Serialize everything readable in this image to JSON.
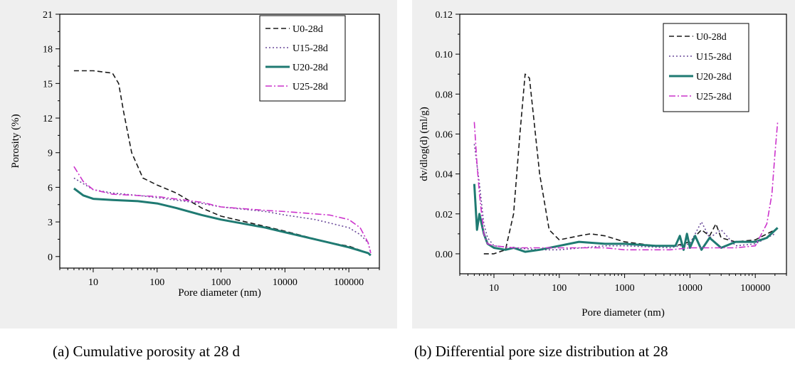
{
  "chart_data": [
    {
      "type": "line",
      "title": "",
      "caption": "(a) Cumulative porosity at 28 d",
      "xlabel": "Pore diameter (nm)",
      "ylabel": "Porosity (%)",
      "xscale": "log",
      "xlim": [
        3,
        300000
      ],
      "ylim": [
        -1,
        21
      ],
      "xticks": [
        10,
        100,
        1000,
        10000,
        100000
      ],
      "xtick_labels": [
        "10",
        "100",
        "1000",
        "10000",
        "100000"
      ],
      "yticks": [
        0,
        3,
        6,
        9,
        12,
        15,
        18,
        21
      ],
      "ytick_labels": [
        "0",
        "3",
        "6",
        "9",
        "12",
        "15",
        "18",
        "21"
      ],
      "grid": false,
      "legend_position": "top-right",
      "series": [
        {
          "name": "U0-28d",
          "color": "#1a1a1a",
          "dash": "7,4",
          "width": 1.6,
          "points": [
            [
              5,
              16.1
            ],
            [
              10,
              16.1
            ],
            [
              20,
              15.9
            ],
            [
              25,
              15
            ],
            [
              30,
              12.5
            ],
            [
              40,
              9
            ],
            [
              60,
              6.8
            ],
            [
              100,
              6.2
            ],
            [
              200,
              5.5
            ],
            [
              500,
              4.2
            ],
            [
              1000,
              3.5
            ],
            [
              5000,
              2.6
            ],
            [
              10000,
              2.2
            ],
            [
              50000,
              1.2
            ],
            [
              100000,
              0.9
            ],
            [
              200000,
              0.3
            ],
            [
              220000,
              0.1
            ]
          ]
        },
        {
          "name": "U15-28d",
          "color": "#6a4a9a",
          "dash": "2,3",
          "width": 1.6,
          "points": [
            [
              5,
              6.8
            ],
            [
              10,
              5.8
            ],
            [
              20,
              5.5
            ],
            [
              50,
              5.3
            ],
            [
              100,
              5.1
            ],
            [
              500,
              4.6
            ],
            [
              1000,
              4.3
            ],
            [
              5000,
              3.9
            ],
            [
              10000,
              3.6
            ],
            [
              30000,
              3.2
            ],
            [
              100000,
              2.5
            ],
            [
              150000,
              1.9
            ],
            [
              200000,
              1.2
            ],
            [
              220000,
              0.3
            ]
          ]
        },
        {
          "name": "U20-28d",
          "color": "#1f7a72",
          "dash": "",
          "width": 3,
          "points": [
            [
              5,
              5.9
            ],
            [
              7,
              5.3
            ],
            [
              10,
              5.0
            ],
            [
              20,
              4.9
            ],
            [
              50,
              4.8
            ],
            [
              100,
              4.6
            ],
            [
              200,
              4.2
            ],
            [
              500,
              3.6
            ],
            [
              1000,
              3.2
            ],
            [
              5000,
              2.5
            ],
            [
              10000,
              2.1
            ],
            [
              50000,
              1.2
            ],
            [
              100000,
              0.8
            ],
            [
              200000,
              0.3
            ],
            [
              220000,
              0.1
            ]
          ]
        },
        {
          "name": "U25-28d",
          "color": "#cc33cc",
          "dash": "9,3,2,3",
          "width": 1.6,
          "points": [
            [
              5,
              7.8
            ],
            [
              7,
              6.5
            ],
            [
              10,
              5.8
            ],
            [
              20,
              5.4
            ],
            [
              100,
              5.2
            ],
            [
              500,
              4.7
            ],
            [
              1000,
              4.3
            ],
            [
              5000,
              4.0
            ],
            [
              10000,
              3.9
            ],
            [
              50000,
              3.6
            ],
            [
              100000,
              3.2
            ],
            [
              150000,
              2.5
            ],
            [
              200000,
              1.2
            ],
            [
              220000,
              0.3
            ]
          ]
        }
      ]
    },
    {
      "type": "line",
      "title": "",
      "caption": "(b) Differential pore size distribution at 28",
      "xlabel": "Pore diameter (nm)",
      "ylabel": "dv/dlog(d) (ml/g)",
      "xscale": "log",
      "xlim": [
        3,
        300000
      ],
      "ylim": [
        -0.01,
        0.12
      ],
      "xticks": [
        10,
        100,
        1000,
        10000,
        100000
      ],
      "xtick_labels": [
        "10",
        "100",
        "1000",
        "10000",
        "100000"
      ],
      "yticks": [
        0,
        0.02,
        0.04,
        0.06,
        0.08,
        0.1,
        0.12
      ],
      "ytick_labels": [
        "0.00",
        "0.02",
        "0.04",
        "0.06",
        "0.08",
        "0.10",
        "0.12"
      ],
      "grid": false,
      "legend_position": "top-right",
      "series": [
        {
          "name": "U0-28d",
          "color": "#1a1a1a",
          "dash": "7,4",
          "width": 1.6,
          "points": [
            [
              7,
              0
            ],
            [
              10,
              0
            ],
            [
              15,
              0.002
            ],
            [
              20,
              0.02
            ],
            [
              25,
              0.06
            ],
            [
              30,
              0.09
            ],
            [
              35,
              0.088
            ],
            [
              40,
              0.07
            ],
            [
              50,
              0.04
            ],
            [
              70,
              0.012
            ],
            [
              100,
              0.007
            ],
            [
              200,
              0.009
            ],
            [
              300,
              0.01
            ],
            [
              500,
              0.009
            ],
            [
              1000,
              0.006
            ],
            [
              3000,
              0.004
            ],
            [
              6000,
              0.004
            ],
            [
              10000,
              0.006
            ],
            [
              15000,
              0.012
            ],
            [
              20000,
              0.009
            ],
            [
              25000,
              0.015
            ],
            [
              30000,
              0.008
            ],
            [
              50000,
              0.006
            ],
            [
              100000,
              0.007
            ],
            [
              200000,
              0.012
            ]
          ]
        },
        {
          "name": "U15-28d",
          "color": "#6a4a9a",
          "dash": "2,3",
          "width": 1.6,
          "points": [
            [
              5,
              0.055
            ],
            [
              6,
              0.035
            ],
            [
              7,
              0.015
            ],
            [
              8,
              0.008
            ],
            [
              10,
              0.004
            ],
            [
              20,
              0.003
            ],
            [
              50,
              0.002
            ],
            [
              100,
              0.002
            ],
            [
              500,
              0.004
            ],
            [
              1000,
              0.004
            ],
            [
              5000,
              0.003
            ],
            [
              10000,
              0.005
            ],
            [
              15000,
              0.016
            ],
            [
              20000,
              0.008
            ],
            [
              30000,
              0.012
            ],
            [
              50000,
              0.004
            ],
            [
              100000,
              0.005
            ],
            [
              200000,
              0.01
            ]
          ]
        },
        {
          "name": "U20-28d",
          "color": "#1f7a72",
          "dash": "",
          "width": 3,
          "points": [
            [
              5,
              0.035
            ],
            [
              5.5,
              0.012
            ],
            [
              6,
              0.02
            ],
            [
              7,
              0.01
            ],
            [
              8,
              0.005
            ],
            [
              10,
              0.003
            ],
            [
              15,
              0.002
            ],
            [
              20,
              0.003
            ],
            [
              30,
              0.001
            ],
            [
              50,
              0.002
            ],
            [
              100,
              0.004
            ],
            [
              200,
              0.006
            ],
            [
              500,
              0.005
            ],
            [
              1000,
              0.005
            ],
            [
              3000,
              0.004
            ],
            [
              6000,
              0.004
            ],
            [
              7000,
              0.009
            ],
            [
              8000,
              0.002
            ],
            [
              9000,
              0.01
            ],
            [
              10000,
              0.003
            ],
            [
              12000,
              0.009
            ],
            [
              15000,
              0.002
            ],
            [
              20000,
              0.008
            ],
            [
              30000,
              0.003
            ],
            [
              50000,
              0.006
            ],
            [
              100000,
              0.006
            ],
            [
              150000,
              0.008
            ],
            [
              220000,
              0.013
            ]
          ]
        },
        {
          "name": "U25-28d",
          "color": "#cc33cc",
          "dash": "9,3,2,3",
          "width": 1.6,
          "points": [
            [
              5,
              0.066
            ],
            [
              5.5,
              0.045
            ],
            [
              6,
              0.03
            ],
            [
              7,
              0.01
            ],
            [
              8,
              0.005
            ],
            [
              10,
              0.004
            ],
            [
              20,
              0.003
            ],
            [
              50,
              0.003
            ],
            [
              100,
              0.003
            ],
            [
              500,
              0.003
            ],
            [
              1000,
              0.002
            ],
            [
              5000,
              0.002
            ],
            [
              10000,
              0.003
            ],
            [
              50000,
              0.003
            ],
            [
              100000,
              0.004
            ],
            [
              150000,
              0.015
            ],
            [
              180000,
              0.03
            ],
            [
              200000,
              0.05
            ],
            [
              220000,
              0.066
            ]
          ]
        }
      ]
    }
  ]
}
